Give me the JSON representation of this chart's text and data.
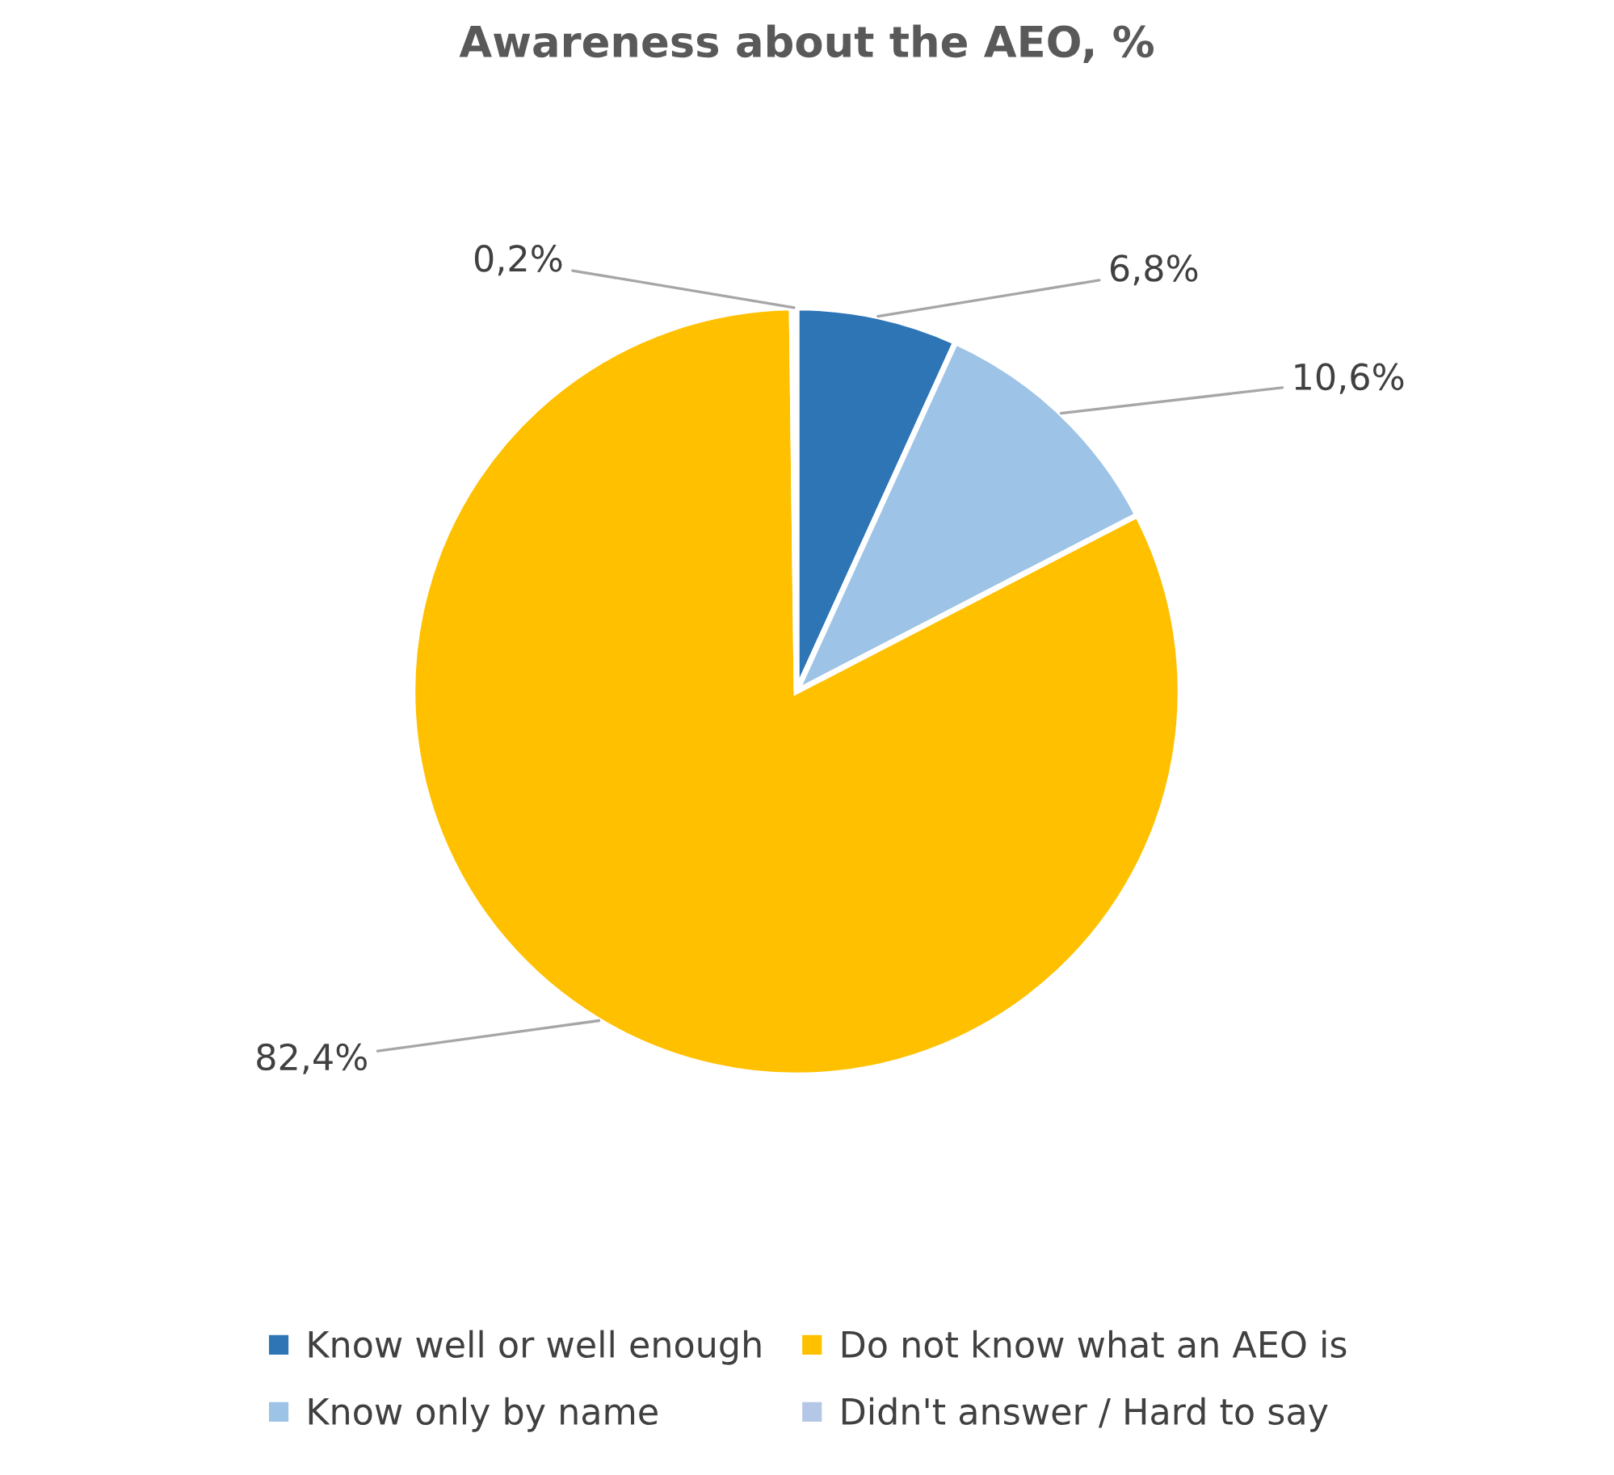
{
  "chart_data": {
    "type": "pie",
    "title": "Awareness about the AEO, %",
    "categories": [
      "Know well or well enough",
      "Know only by name",
      "Do not know what an AEO is",
      "Didn't answer / Hard to say"
    ],
    "values": [
      6.8,
      10.6,
      82.4,
      0.2
    ],
    "colors": [
      "#2e75b6",
      "#9dc3e6",
      "#ffc000",
      "#b4c7e7"
    ],
    "value_labels": [
      "6,8%",
      "10,6%",
      "82,4%",
      "0,2%"
    ],
    "legend": "bottom"
  }
}
